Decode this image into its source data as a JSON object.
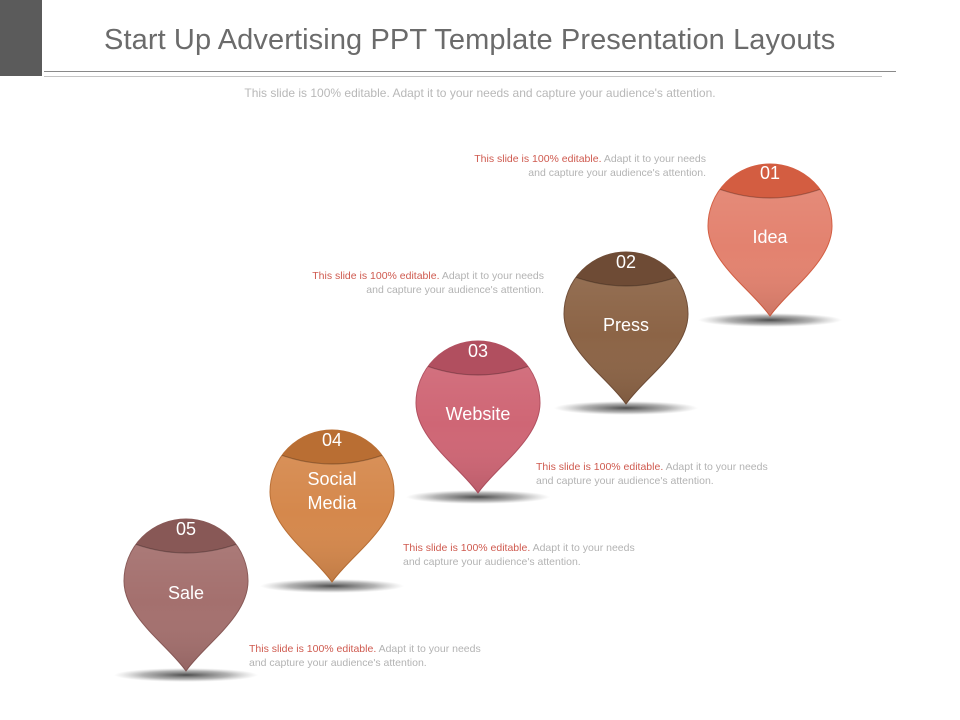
{
  "slide": {
    "title": "Start Up Advertising PPT Template Presentation Layouts",
    "subtitle": "This slide is 100% editable. Adapt it to your needs and capture your audience's attention."
  },
  "diagram": {
    "steps": [
      {
        "number": "01",
        "label_lines": [
          "Idea"
        ],
        "color": "#e3826f",
        "cap_color": "#d35d41",
        "caption": {
          "lead": "This slide is 100% editable.",
          "rest": "Adapt it to your needs and capture your audience's attention."
        }
      },
      {
        "number": "02",
        "label_lines": [
          "Press"
        ],
        "color": "#8c6446",
        "cap_color": "#6e4b35",
        "caption": {
          "lead": "This slide is 100% editable.",
          "rest": "Adapt it to your needs and capture your audience's attention."
        }
      },
      {
        "number": "03",
        "label_lines": [
          "Website"
        ],
        "color": "#cf6675",
        "cap_color": "#b14f5f",
        "caption": {
          "lead": "This slide is 100% editable.",
          "rest": "Adapt it to your needs and capture your audience's attention."
        }
      },
      {
        "number": "04",
        "label_lines": [
          "Social",
          "Media"
        ],
        "color": "#d5884c",
        "cap_color": "#b96e33",
        "caption": {
          "lead": "This slide is 100% editable.",
          "rest": "Adapt it to your needs and capture your audience's attention."
        }
      },
      {
        "number": "05",
        "label_lines": [
          "Sale"
        ],
        "color": "#a4706e",
        "cap_color": "#885856",
        "caption": {
          "lead": "This slide is 100% editable.",
          "rest": "Adapt it to your needs and capture your audience's attention."
        }
      }
    ]
  }
}
